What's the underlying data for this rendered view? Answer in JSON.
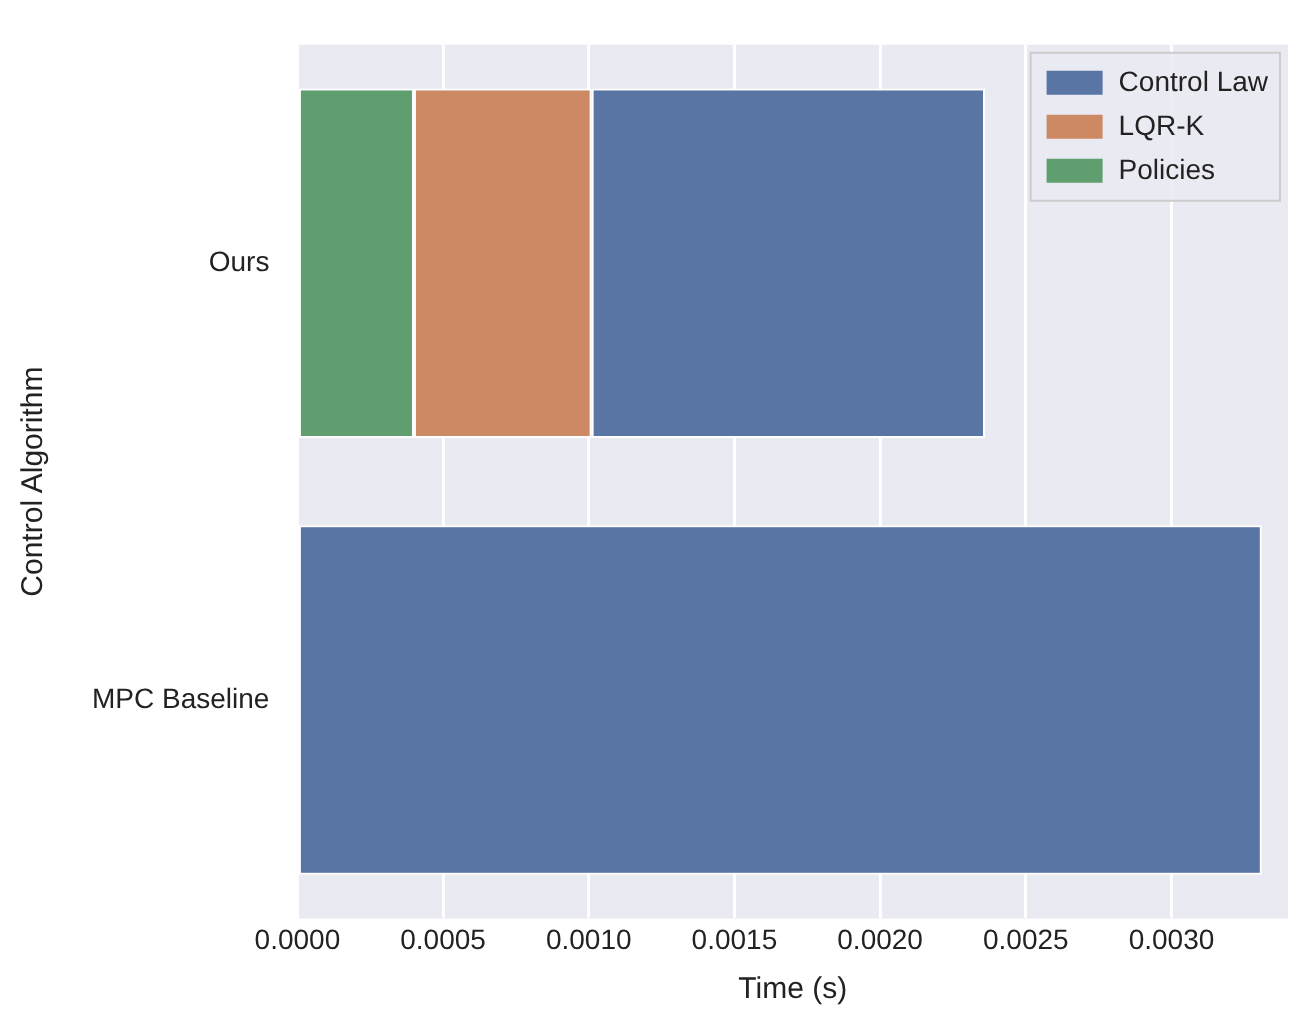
{
  "chart_data": {
    "type": "bar",
    "orientation": "horizontal",
    "stacked": true,
    "xlabel": "Time (s)",
    "ylabel": "Control Algorithm",
    "categories": [
      "Ours",
      "MPC Baseline"
    ],
    "series": [
      {
        "name": "Policies",
        "color": "#5f9e6e",
        "values": [
          0.0004,
          null
        ]
      },
      {
        "name": "LQR-K",
        "color": "#cc8963",
        "values": [
          0.00061,
          null
        ]
      },
      {
        "name": "Control Law",
        "color": "#5875a4",
        "values": [
          0.00135,
          0.00331
        ]
      }
    ],
    "xlim": [
      0,
      0.0034
    ],
    "xticks": [
      {
        "value": 0,
        "label": "0.0000"
      },
      {
        "value": 0.0005,
        "label": "0.0005"
      },
      {
        "value": 0.001,
        "label": "0.0010"
      },
      {
        "value": 0.0015,
        "label": "0.0015"
      },
      {
        "value": 0.002,
        "label": "0.0020"
      },
      {
        "value": 0.0025,
        "label": "0.0025"
      },
      {
        "value": 0.003,
        "label": "0.0030"
      }
    ],
    "grid": "x",
    "legend": "top right"
  }
}
